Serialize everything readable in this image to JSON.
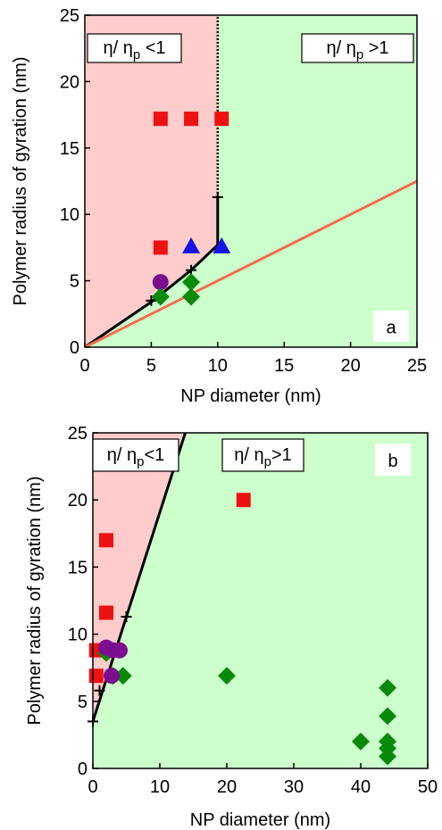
{
  "chart_data": [
    {
      "type": "scatter",
      "panel_label": "a",
      "x_label": "NP diameter (nm)",
      "y_label": "Polymer radius of gyration (nm)",
      "xlim": [
        0,
        25
      ],
      "ylim": [
        0,
        25
      ],
      "xticks": [
        0,
        5,
        10,
        15,
        20,
        25
      ],
      "yticks": [
        0,
        5,
        10,
        15,
        20,
        25
      ],
      "regions": {
        "left_color": "#ffcccc",
        "right_color": "#ccffcc"
      },
      "annotations": [
        {
          "main": "η/ η",
          "sub": "p",
          "tail": " <1"
        },
        {
          "main": "η/ η",
          "sub": "p",
          "tail": " >1"
        }
      ],
      "series": [
        {
          "marker": "line",
          "color": "#000000",
          "boundary": true,
          "x": [
            0,
            5,
            8,
            10,
            10
          ],
          "values": [
            0,
            3.4,
            5.8,
            7.7,
            11.3
          ]
        },
        {
          "marker": "line",
          "color": "#000000",
          "dash": "dotted",
          "boundary": true,
          "x": [
            10,
            10
          ],
          "values": [
            11.3,
            25
          ]
        },
        {
          "marker": "line",
          "color": "#f26b4a",
          "x": [
            0,
            25
          ],
          "values": [
            0,
            12.5
          ]
        },
        {
          "marker": "plus",
          "color": "#000000",
          "x": [
            5,
            8,
            10
          ],
          "values": [
            3.5,
            5.8,
            11.3
          ]
        },
        {
          "marker": "square",
          "color": "#ee1111",
          "x": [
            5.7,
            8,
            10.3,
            5.7
          ],
          "values": [
            17.2,
            17.2,
            17.2,
            7.5
          ]
        },
        {
          "marker": "triangle",
          "color": "#1414e6",
          "x": [
            8,
            10.3
          ],
          "values": [
            7.6,
            7.6
          ]
        },
        {
          "marker": "circle",
          "color": "#7b0d8f",
          "x": [
            5.7
          ],
          "values": [
            4.9
          ]
        },
        {
          "marker": "diamond",
          "color": "#0a8a0a",
          "x": [
            5.7,
            8,
            8
          ],
          "values": [
            3.8,
            4.9,
            3.8
          ]
        }
      ]
    },
    {
      "type": "scatter",
      "panel_label": "b",
      "x_label": "NP diameter (nm)",
      "y_label": "Polymer radius of gyration (nm)",
      "xlim": [
        0,
        50
      ],
      "ylim": [
        0,
        25
      ],
      "xticks": [
        0,
        10,
        20,
        30,
        40,
        50
      ],
      "yticks": [
        0,
        5,
        10,
        15,
        20,
        25
      ],
      "regions": {
        "left_color": "#ffcccc",
        "right_color": "#ccffcc"
      },
      "annotations": [
        {
          "main": "η/ η",
          "sub": "p",
          "tail": "<1"
        },
        {
          "main": "η/ η",
          "sub": "p",
          "tail": ">1"
        }
      ],
      "series": [
        {
          "marker": "line",
          "color": "#000000",
          "boundary": true,
          "x": [
            0,
            13.8
          ],
          "values": [
            3.5,
            25
          ]
        },
        {
          "marker": "square",
          "color": "#ee1111",
          "x": [
            2,
            2,
            0.5,
            0.5,
            22.5
          ],
          "values": [
            17,
            11.6,
            8.8,
            6.9,
            20
          ]
        },
        {
          "marker": "diamond",
          "color": "#0a8a0a",
          "x": [
            2,
            3,
            4.5,
            20,
            40,
            44,
            44,
            44,
            44,
            44
          ],
          "values": [
            8.6,
            6.9,
            6.9,
            6.9,
            2,
            6,
            3.9,
            2,
            1.5,
            0.9
          ]
        },
        {
          "marker": "circle",
          "color": "#7b0d8f",
          "x": [
            2,
            3,
            4,
            2.8
          ],
          "values": [
            9,
            8.8,
            8.8,
            6.9
          ]
        },
        {
          "marker": "plus",
          "color": "#000000",
          "x": [
            0,
            1,
            5
          ],
          "values": [
            3.5,
            5.8,
            11.3
          ]
        }
      ]
    }
  ]
}
